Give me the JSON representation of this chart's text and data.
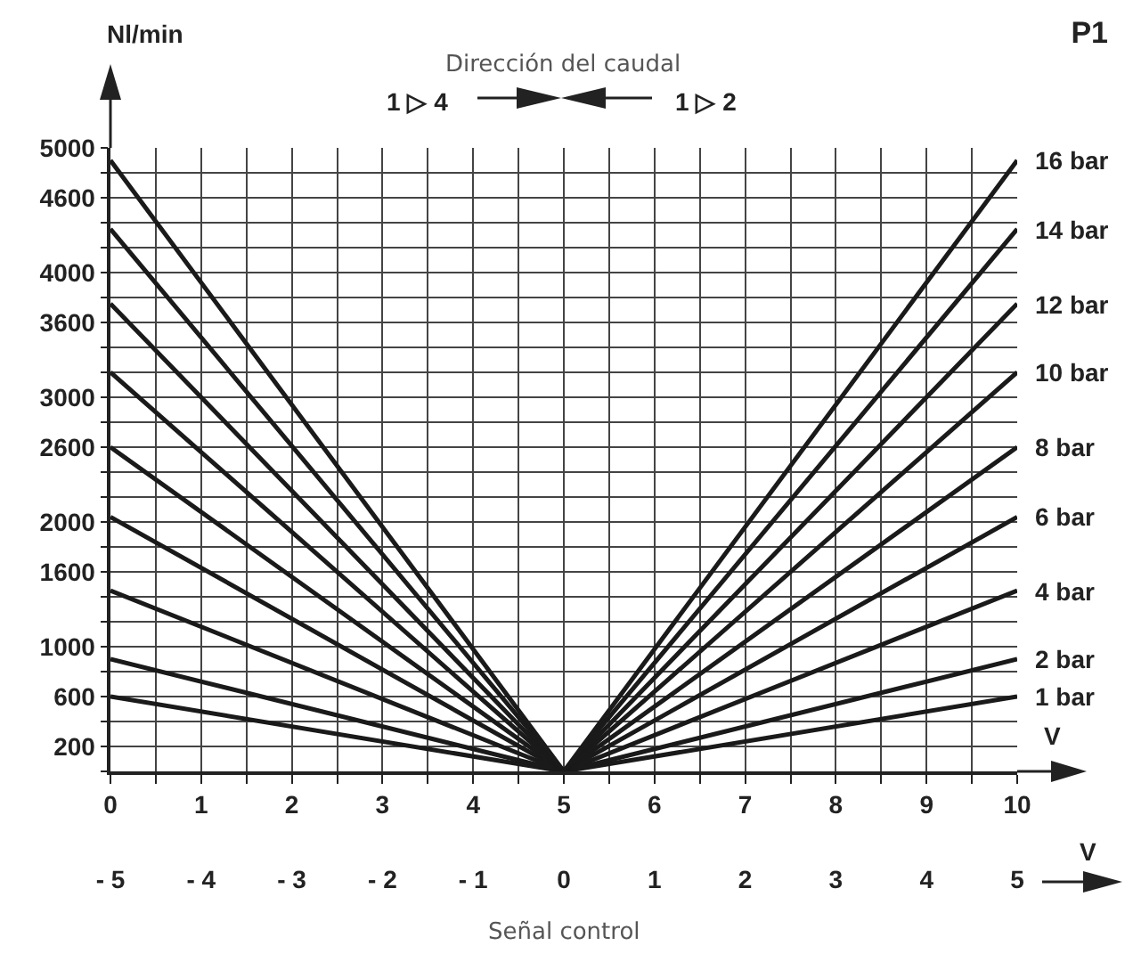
{
  "chart_data": {
    "type": "line",
    "title": "P1",
    "subtitle": "Dirección del caudal",
    "ylabel": "Nl/min",
    "xlabel": "V",
    "x2label": "V",
    "annotations": [
      "1 ▷ 4",
      "1 ▷ 2",
      "Señal control"
    ],
    "x": [
      0,
      5,
      10
    ],
    "series": [
      {
        "name": "1 bar",
        "color": "#1a1a1a",
        "values": [
          600,
          0,
          600
        ]
      },
      {
        "name": "2 bar",
        "color": "#1a1a1a",
        "values": [
          900,
          0,
          900
        ]
      },
      {
        "name": "4 bar",
        "color": "#1a1a1a",
        "values": [
          1450,
          0,
          1450
        ]
      },
      {
        "name": "6 bar",
        "color": "#1a1a1a",
        "values": [
          2040,
          0,
          2040
        ]
      },
      {
        "name": "8 bar",
        "color": "#1a1a1a",
        "values": [
          2600,
          0,
          2600
        ]
      },
      {
        "name": "10 bar",
        "color": "#1a1a1a",
        "values": [
          3200,
          0,
          3200
        ]
      },
      {
        "name": "12 bar",
        "color": "#1a1a1a",
        "values": [
          3750,
          0,
          3750
        ]
      },
      {
        "name": "14 bar",
        "color": "#1a1a1a",
        "values": [
          4350,
          0,
          4350
        ]
      },
      {
        "name": "16 bar",
        "color": "#1a1a1a",
        "values": [
          4900,
          0,
          4900
        ]
      }
    ],
    "xlim": [
      0,
      10
    ],
    "xticks": [
      0,
      {
        "value": 0.5,
        "label": null
      },
      1,
      {
        "value": 1.5,
        "label": null
      },
      2,
      {
        "value": 2.5,
        "label": null
      },
      3,
      {
        "value": 3.5,
        "label": null
      },
      4,
      {
        "value": 4.5,
        "label": null
      },
      5,
      {
        "value": 5.5,
        "label": null
      },
      6,
      {
        "value": 6.5,
        "label": null
      },
      7,
      {
        "value": 7.5,
        "label": null
      },
      8,
      {
        "value": 8.5,
        "label": null
      },
      9,
      {
        "value": 9.5,
        "label": null
      },
      10
    ],
    "x2lim": [
      -5,
      5
    ],
    "x2ticks": [
      {
        "value": -5,
        "label": "- 5"
      },
      {
        "value": -4,
        "label": "- 4"
      },
      {
        "value": -3,
        "label": "- 3"
      },
      {
        "value": -2,
        "label": "- 2"
      },
      {
        "value": -1,
        "label": "- 1"
      },
      0,
      1,
      2,
      3,
      4,
      5
    ],
    "ylim": [
      0,
      5000
    ],
    "yticks": [
      {
        "value": 0,
        "label": null
      },
      200,
      {
        "value": 400,
        "label": null
      },
      600,
      {
        "value": 800,
        "label": null
      },
      1000,
      {
        "value": 1200,
        "label": null
      },
      {
        "value": 1400,
        "label": null
      },
      1600,
      {
        "value": 1800,
        "label": null
      },
      2000,
      {
        "value": 2200,
        "label": null
      },
      {
        "value": 2400,
        "label": null
      },
      2600,
      {
        "value": 2800,
        "label": null
      },
      3000,
      {
        "value": 3200,
        "label": null
      },
      {
        "value": 3400,
        "label": null
      },
      3600,
      {
        "value": 3800,
        "label": null
      },
      4000,
      {
        "value": 4200,
        "label": null
      },
      {
        "value": 4400,
        "label": null
      },
      4600,
      {
        "value": 4800,
        "label": null
      },
      5000
    ],
    "grid": true,
    "legend": false,
    "marker": "none",
    "line_style": "solid"
  }
}
